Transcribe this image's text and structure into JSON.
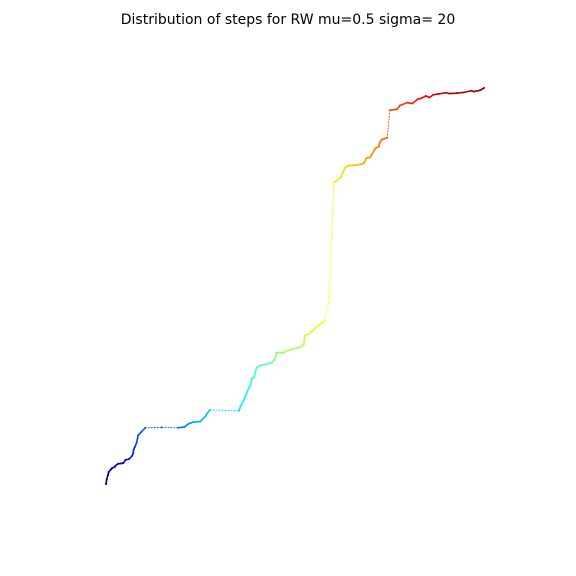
{
  "chart_data": {
    "type": "line",
    "title": "Distribution of steps for RW mu=0.5 sigma= 20",
    "xlabel": "",
    "ylabel": "",
    "axes_visible": false,
    "grid": false,
    "legend": "none",
    "colormap": "jet",
    "colormap_stops": [
      "#00007f",
      "#0000ff",
      "#007fff",
      "#00ffff",
      "#7fff7f",
      "#ffff00",
      "#ff7f00",
      "#ff0000",
      "#7f0000"
    ],
    "x_range": [
      0,
      100
    ],
    "y_range": [
      0,
      100
    ],
    "walk": {
      "x": [
        0.0,
        0.2,
        0.5,
        0.7,
        1.3,
        1.6,
        2.3,
        2.5,
        3.2,
        4.1,
        4.6,
        5.2,
        6.1,
        6.9,
        7.2,
        7.3,
        7.6,
        8.1,
        8.5,
        9.4,
        10.4,
        14.8,
        19.0,
        20.8,
        21.5,
        22.3,
        23.0,
        25.0,
        26.4,
        26.8,
        27.5,
        35.2,
        35.6,
        36.4,
        36.9,
        37.4,
        38.0,
        38.4,
        38.6,
        39.2,
        39.8,
        40.9,
        42.2,
        43.9,
        44.6,
        44.8,
        45.1,
        46.9,
        48.9,
        50.9,
        52.3,
        52.6,
        53.8,
        54.2,
        55.6,
        57.8,
        58.9,
        59.7,
        60.3,
        62.1,
        63.3,
        64.1,
        66.0,
        67.2,
        68.2,
        68.9,
        69.9,
        71.3,
        72.2,
        72.4,
        73.0,
        74.4,
        75.1,
        76.9,
        77.8,
        79.7,
        81.1,
        82.5,
        83.4,
        84.6,
        85.6,
        86.6,
        88.0,
        89.9,
        90.9,
        92.9,
        94.7,
        96.7,
        97.3,
        98.9,
        100.0
      ],
      "y": [
        0.0,
        1.2,
        2.2,
        3.0,
        3.7,
        4.0,
        4.3,
        4.6,
        5.1,
        5.2,
        5.3,
        6.1,
        6.3,
        7.1,
        7.8,
        8.6,
        9.3,
        10.4,
        12.3,
        13.2,
        14.2,
        14.3,
        14.2,
        14.4,
        15.0,
        15.4,
        15.6,
        15.8,
        17.2,
        17.9,
        18.7,
        18.5,
        19.6,
        21.0,
        22.2,
        23.5,
        24.6,
        25.6,
        26.7,
        27.0,
        29.3,
        30.0,
        30.2,
        30.7,
        31.4,
        32.0,
        33.2,
        33.2,
        34.0,
        34.4,
        35.1,
        37.5,
        37.9,
        38.3,
        39.6,
        41.1,
        45.6,
        61.7,
        76.1,
        77.4,
        79.9,
        80.4,
        80.5,
        80.7,
        81.0,
        82.3,
        82.5,
        84.8,
        85.2,
        86.2,
        87.0,
        87.4,
        94.4,
        94.6,
        95.6,
        96.3,
        96.1,
        97.2,
        97.4,
        98.0,
        97.6,
        98.3,
        98.5,
        98.8,
        98.6,
        98.7,
        98.9,
        99.3,
        99.1,
        99.4,
        100.0
      ]
    }
  }
}
